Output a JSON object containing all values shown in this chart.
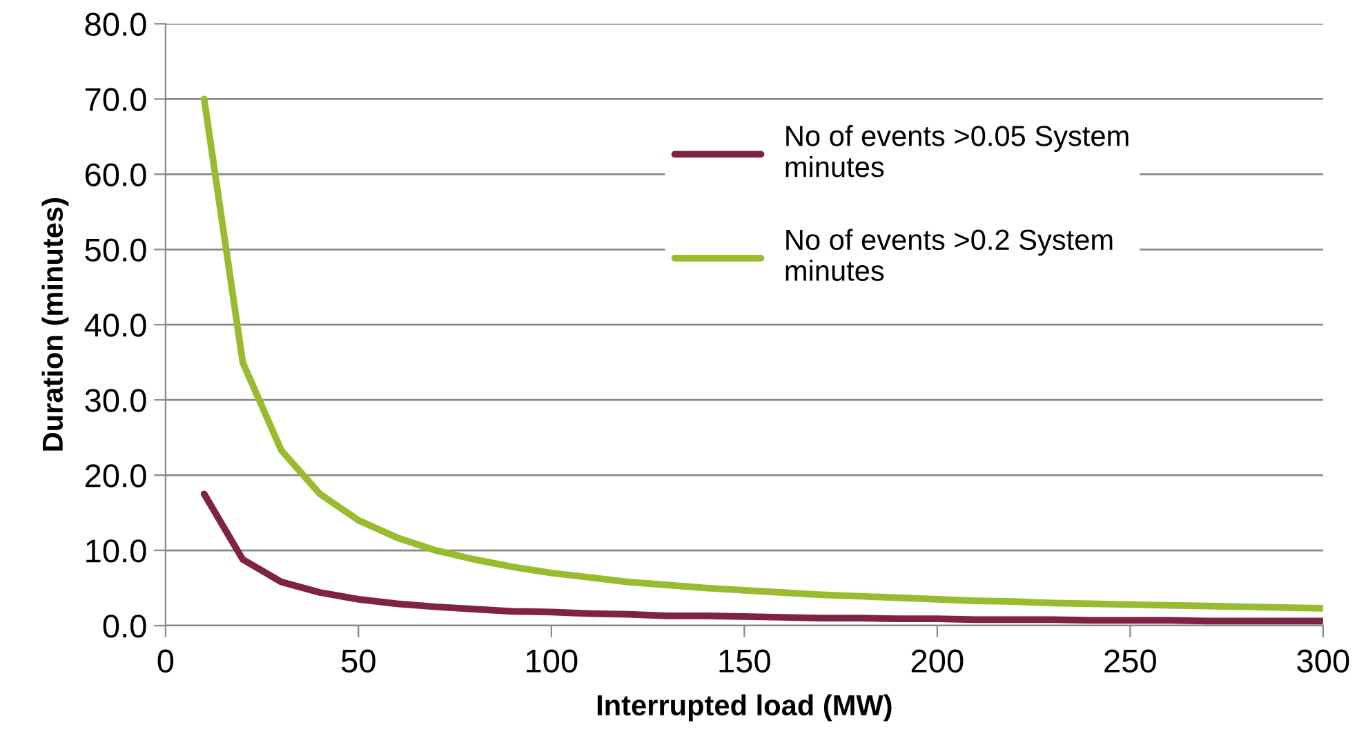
{
  "chart_data": {
    "type": "line",
    "xlabel": "Interrupted load (MW)",
    "ylabel": "Duration (minutes)",
    "x": [
      10,
      20,
      30,
      40,
      50,
      60,
      70,
      80,
      90,
      100,
      110,
      120,
      130,
      140,
      150,
      160,
      170,
      180,
      190,
      200,
      210,
      220,
      230,
      240,
      250,
      260,
      270,
      280,
      290,
      300
    ],
    "series": [
      {
        "name": "No of events >0.05 System minutes",
        "color": "#7f2245",
        "values": [
          17.5,
          8.8,
          5.8,
          4.4,
          3.5,
          2.9,
          2.5,
          2.2,
          1.9,
          1.8,
          1.6,
          1.5,
          1.3,
          1.3,
          1.2,
          1.1,
          1.0,
          1.0,
          0.9,
          0.9,
          0.8,
          0.8,
          0.8,
          0.7,
          0.7,
          0.7,
          0.6,
          0.6,
          0.6,
          0.6
        ]
      },
      {
        "name": "No of events >0.2 System minutes",
        "color": "#9bbb2f",
        "values": [
          70.0,
          35.0,
          23.3,
          17.5,
          14.0,
          11.7,
          10.0,
          8.8,
          7.8,
          7.0,
          6.4,
          5.8,
          5.4,
          5.0,
          4.7,
          4.4,
          4.1,
          3.9,
          3.7,
          3.5,
          3.3,
          3.2,
          3.0,
          2.9,
          2.8,
          2.7,
          2.6,
          2.5,
          2.4,
          2.3
        ]
      }
    ],
    "xlim": [
      0,
      300
    ],
    "xticks": [
      0,
      50,
      100,
      150,
      200,
      250,
      300
    ],
    "ylim": [
      0,
      80
    ],
    "yticks": [
      {
        "value": 0,
        "label": "0.0"
      },
      {
        "value": 10,
        "label": "10.0"
      },
      {
        "value": 20,
        "label": "20.0"
      },
      {
        "value": 30,
        "label": "30.0"
      },
      {
        "value": 40,
        "label": "40.0"
      },
      {
        "value": 50,
        "label": "50.0"
      },
      {
        "value": 60,
        "label": "60.0"
      },
      {
        "value": 70,
        "label": "70.0"
      },
      {
        "value": 80,
        "label": "80.0"
      }
    ],
    "grid": "y",
    "legend": "right",
    "marker": "none",
    "line_style": "solid"
  }
}
